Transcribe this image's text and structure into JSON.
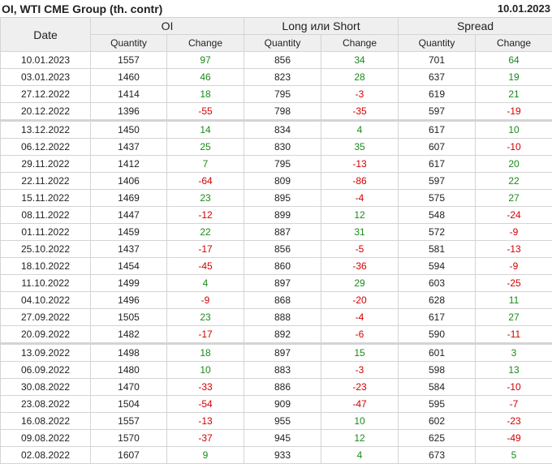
{
  "title": "OI, WTI CME Group (th. contr)",
  "report_date": "10.01.2023",
  "colors": {
    "positive": "#1a8a1a",
    "negative": "#d40000",
    "header_bg": "#efefef"
  },
  "headers": {
    "date": "Date",
    "groups": [
      "OI",
      "Long или Short",
      "Spread"
    ],
    "sub": [
      "Quantity",
      "Change",
      "Quantity",
      "Change",
      "Quantity",
      "Change"
    ]
  },
  "separator_after_rows": [
    "20.12.2022",
    "20.09.2022"
  ],
  "rows": [
    [
      "10.01.2023",
      "1557",
      "97",
      "856",
      "34",
      "701",
      "64"
    ],
    [
      "03.01.2023",
      "1460",
      "46",
      "823",
      "28",
      "637",
      "19"
    ],
    [
      "27.12.2022",
      "1414",
      "18",
      "795",
      "-3",
      "619",
      "21"
    ],
    [
      "20.12.2022",
      "1396",
      "-55",
      "798",
      "-35",
      "597",
      "-19"
    ],
    [
      "13.12.2022",
      "1450",
      "14",
      "834",
      "4",
      "617",
      "10"
    ],
    [
      "06.12.2022",
      "1437",
      "25",
      "830",
      "35",
      "607",
      "-10"
    ],
    [
      "29.11.2022",
      "1412",
      "7",
      "795",
      "-13",
      "617",
      "20"
    ],
    [
      "22.11.2022",
      "1406",
      "-64",
      "809",
      "-86",
      "597",
      "22"
    ],
    [
      "15.11.2022",
      "1469",
      "23",
      "895",
      "-4",
      "575",
      "27"
    ],
    [
      "08.11.2022",
      "1447",
      "-12",
      "899",
      "12",
      "548",
      "-24"
    ],
    [
      "01.11.2022",
      "1459",
      "22",
      "887",
      "31",
      "572",
      "-9"
    ],
    [
      "25.10.2022",
      "1437",
      "-17",
      "856",
      "-5",
      "581",
      "-13"
    ],
    [
      "18.10.2022",
      "1454",
      "-45",
      "860",
      "-36",
      "594",
      "-9"
    ],
    [
      "11.10.2022",
      "1499",
      "4",
      "897",
      "29",
      "603",
      "-25"
    ],
    [
      "04.10.2022",
      "1496",
      "-9",
      "868",
      "-20",
      "628",
      "11"
    ],
    [
      "27.09.2022",
      "1505",
      "23",
      "888",
      "-4",
      "617",
      "27"
    ],
    [
      "20.09.2022",
      "1482",
      "-17",
      "892",
      "-6",
      "590",
      "-11"
    ],
    [
      "13.09.2022",
      "1498",
      "18",
      "897",
      "15",
      "601",
      "3"
    ],
    [
      "06.09.2022",
      "1480",
      "10",
      "883",
      "-3",
      "598",
      "13"
    ],
    [
      "30.08.2022",
      "1470",
      "-33",
      "886",
      "-23",
      "584",
      "-10"
    ],
    [
      "23.08.2022",
      "1504",
      "-54",
      "909",
      "-47",
      "595",
      "-7"
    ],
    [
      "16.08.2022",
      "1557",
      "-13",
      "955",
      "10",
      "602",
      "-23"
    ],
    [
      "09.08.2022",
      "1570",
      "-37",
      "945",
      "12",
      "625",
      "-49"
    ],
    [
      "02.08.2022",
      "1607",
      "9",
      "933",
      "4",
      "673",
      "5"
    ]
  ]
}
